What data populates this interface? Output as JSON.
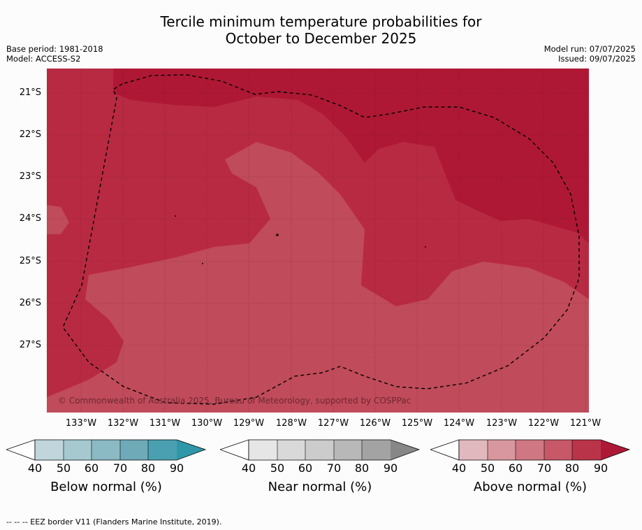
{
  "header": {
    "title_line1": "Tercile minimum temperature probabilities for",
    "title_line2": "October to December 2025",
    "base_period": "Base period: 1981-2018",
    "model": "Model: ACCESS-S2",
    "model_run": "Model run: 07/07/2025",
    "issued": "Issued: 09/07/2025"
  },
  "map": {
    "copyright": "© Commonwealth of Australia 2025, Bureau of Meteorology, supported by COSPPac",
    "lat_labels": [
      "21°S",
      "22°S",
      "23°S",
      "24°S",
      "25°S",
      "26°S",
      "27°S"
    ],
    "lon_labels": [
      "133°W",
      "132°W",
      "131°W",
      "130°W",
      "129°W",
      "128°W",
      "127°W",
      "126°W",
      "125°W",
      "124°W",
      "123°W",
      "122°W",
      "121°W"
    ],
    "colors": {
      "above_80": "#b81e3c",
      "above_90": "#ae1734",
      "above_70": "#c04b5a"
    }
  },
  "colorbars": [
    {
      "name": "below",
      "title": "Below normal (%)",
      "ticks": [
        "40",
        "50",
        "60",
        "70",
        "80",
        "90"
      ],
      "colors": [
        "#c0d6dc",
        "#a6c9d0",
        "#8bb9c4",
        "#6eaab7",
        "#4aa0b0",
        "#2f97a8"
      ]
    },
    {
      "name": "near",
      "title": "Near normal (%)",
      "ticks": [
        "40",
        "50",
        "60",
        "70",
        "80",
        "90"
      ],
      "colors": [
        "#e6e6e6",
        "#d9d9d9",
        "#cccccc",
        "#b8b8b8",
        "#a3a3a3",
        "#878787"
      ]
    },
    {
      "name": "above",
      "title": "Above normal (%)",
      "ticks": [
        "40",
        "50",
        "60",
        "70",
        "80",
        "90"
      ],
      "colors": [
        "#e2b8bf",
        "#d8979e",
        "#cf7782",
        "#c75868",
        "#ba3449",
        "#ad1836"
      ]
    }
  ],
  "footer": {
    "legend": "--  --  -- EEZ border V11 (Flanders Marine Institute, 2019)."
  }
}
